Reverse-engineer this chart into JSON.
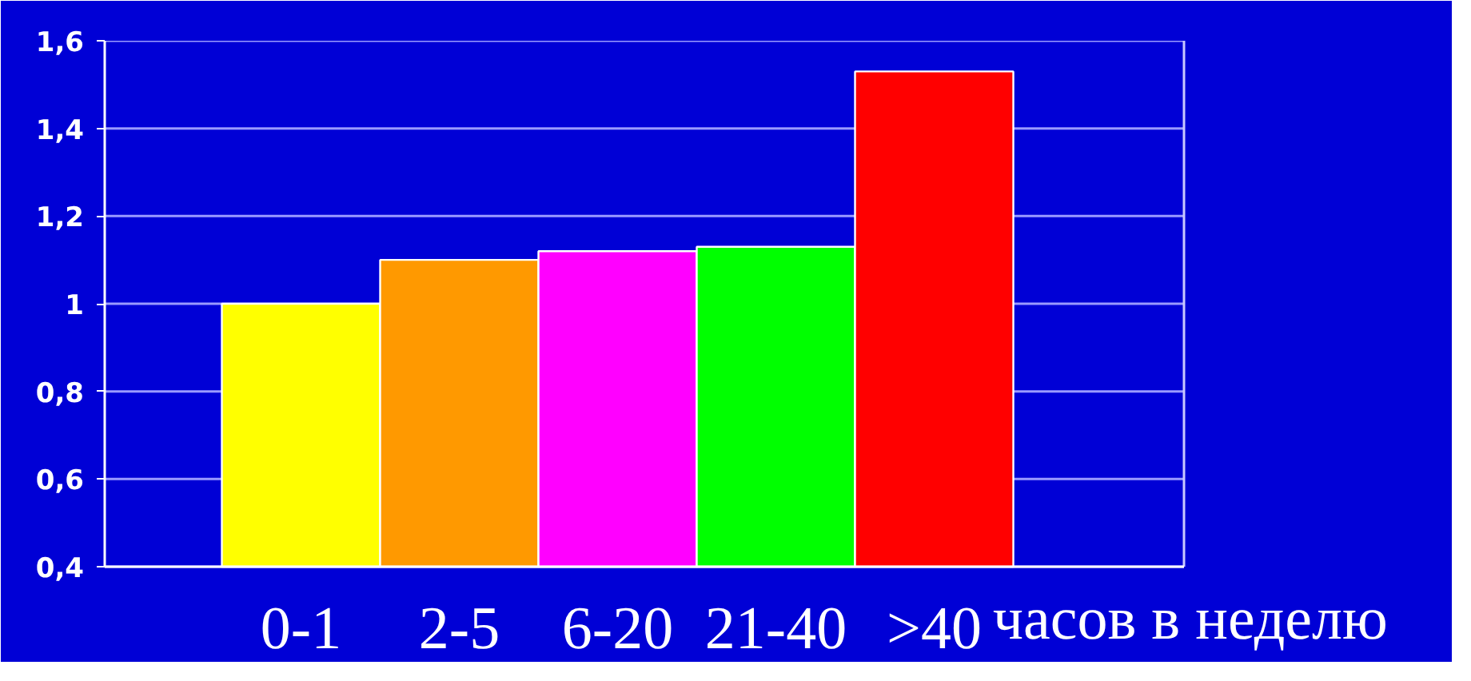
{
  "chart_data": {
    "type": "bar",
    "categories": [
      "0-1",
      "2-5",
      "6-20",
      "21-40",
      ">40"
    ],
    "xlabel": "часов в неделю",
    "values": [
      1.0,
      1.1,
      1.12,
      1.13,
      1.53
    ],
    "colors": [
      "#ffff00",
      "#ff9900",
      "#ff00ff",
      "#00ff00",
      "#ff0000"
    ],
    "ylim": [
      0.4,
      1.6
    ],
    "yticks": [
      {
        "value": 0.4,
        "label": "0,4"
      },
      {
        "value": 0.6,
        "label": "0,6"
      },
      {
        "value": 0.8,
        "label": "0,8"
      },
      1,
      {
        "value": 1.2,
        "label": "1,2"
      },
      {
        "value": 1.4,
        "label": "1,4"
      },
      {
        "value": 1.6,
        "label": "1,6"
      }
    ],
    "grid": "y"
  }
}
